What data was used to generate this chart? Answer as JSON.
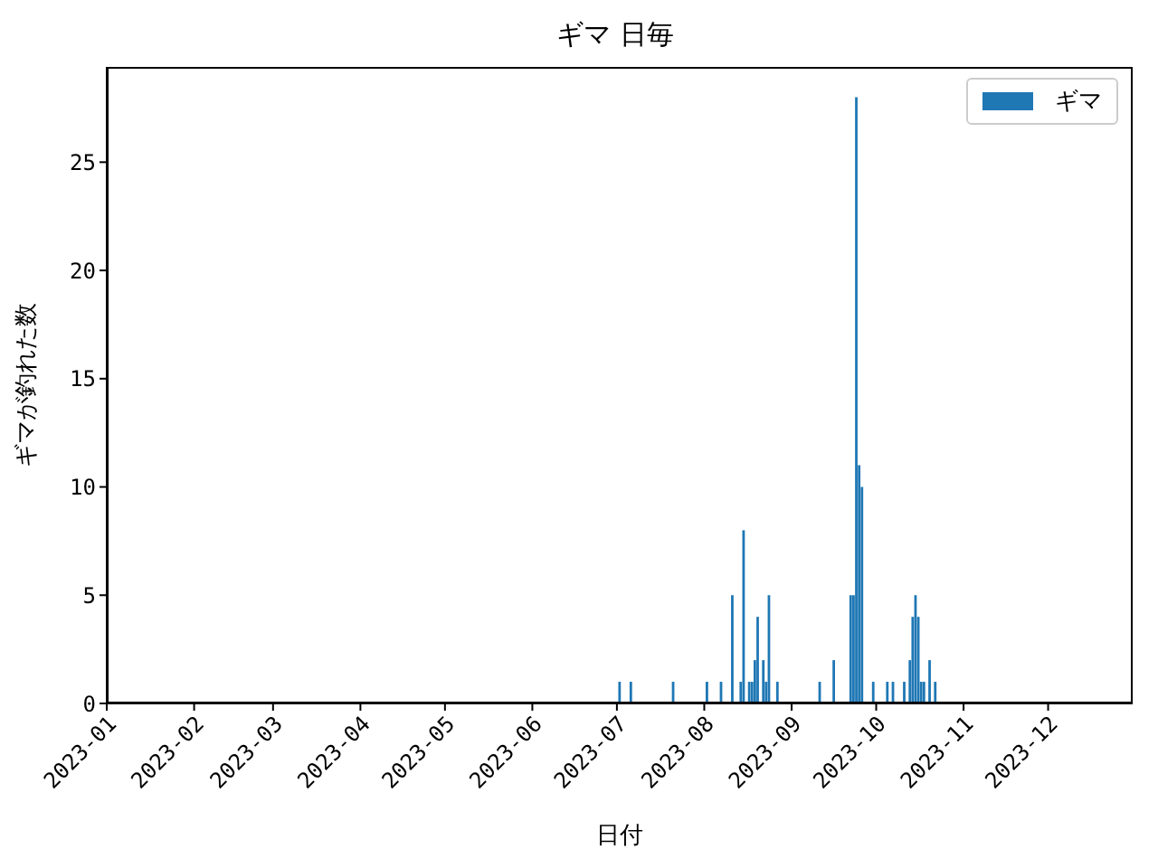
{
  "chart_data": {
    "type": "bar",
    "title": "ギマ 日毎",
    "xlabel": "日付",
    "ylabel": "ギマが釣れた数",
    "x": [
      "2023-07-02",
      "2023-07-06",
      "2023-07-21",
      "2023-08-02",
      "2023-08-07",
      "2023-08-11",
      "2023-08-14",
      "2023-08-15",
      "2023-08-17",
      "2023-08-18",
      "2023-08-19",
      "2023-08-20",
      "2023-08-22",
      "2023-08-23",
      "2023-08-24",
      "2023-08-27",
      "2023-09-11",
      "2023-09-16",
      "2023-09-22",
      "2023-09-23",
      "2023-09-24",
      "2023-09-25",
      "2023-09-26",
      "2023-09-30",
      "2023-10-05",
      "2023-10-07",
      "2023-10-11",
      "2023-10-13",
      "2023-10-14",
      "2023-10-15",
      "2023-10-16",
      "2023-10-17",
      "2023-10-18",
      "2023-10-20",
      "2023-10-22"
    ],
    "series": [
      {
        "name": "ギマ",
        "color": "#1f77b4",
        "values": [
          1,
          1,
          1,
          1,
          1,
          5,
          1,
          8,
          1,
          1,
          2,
          4,
          2,
          1,
          5,
          1,
          1,
          2,
          5,
          5,
          28,
          11,
          10,
          1,
          1,
          1,
          1,
          2,
          4,
          5,
          4,
          1,
          1,
          2,
          1
        ]
      }
    ],
    "xlim": [
      "2023-01-01",
      "2023-12-31"
    ],
    "xticks": [
      {
        "value": "2023-01-01",
        "label": "2023-01"
      },
      {
        "value": "2023-02-01",
        "label": "2023-02"
      },
      {
        "value": "2023-03-01",
        "label": "2023-03"
      },
      {
        "value": "2023-04-01",
        "label": "2023-04"
      },
      {
        "value": "2023-05-01",
        "label": "2023-05"
      },
      {
        "value": "2023-06-01",
        "label": "2023-06"
      },
      {
        "value": "2023-07-01",
        "label": "2023-07"
      },
      {
        "value": "2023-08-01",
        "label": "2023-08"
      },
      {
        "value": "2023-09-01",
        "label": "2023-09"
      },
      {
        "value": "2023-10-01",
        "label": "2023-10"
      },
      {
        "value": "2023-11-01",
        "label": "2023-11"
      },
      {
        "value": "2023-12-01",
        "label": "2023-12"
      }
    ],
    "ylim": [
      0,
      29.4
    ],
    "yticks": [
      0,
      5,
      10,
      15,
      20,
      25
    ],
    "legend": "top right"
  }
}
